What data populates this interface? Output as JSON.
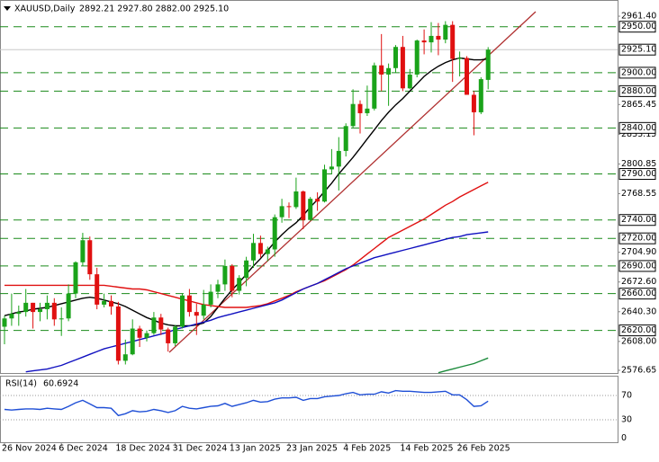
{
  "chart_data": {
    "type": "candlestick",
    "symbol": "XAUUSD,Daily",
    "header_ohlc_label": "2892.21 2927.80 2882.00 2925.10",
    "categories": [
      "26 Nov 2024",
      null,
      null,
      null,
      null,
      null,
      null,
      null,
      "6 Dec 2024",
      null,
      null,
      null,
      null,
      null,
      null,
      null,
      "18 Dec 2024",
      null,
      null,
      null,
      null,
      null,
      null,
      null,
      "31 Dec 2024",
      null,
      null,
      null,
      null,
      null,
      null,
      null,
      "13 Jan 2025",
      null,
      null,
      null,
      null,
      null,
      null,
      null,
      "23 Jan 2025",
      null,
      null,
      null,
      null,
      null,
      null,
      null,
      "4 Feb 2025",
      null,
      null,
      null,
      null,
      null,
      null,
      null,
      "14 Feb 2025",
      null,
      null,
      null,
      null,
      null,
      null,
      null,
      "26 Feb 2025",
      null,
      null,
      null,
      null
    ],
    "open": [
      2624,
      2633,
      2638,
      2640,
      2650,
      2640,
      2643,
      2650,
      2632,
      2633,
      2660,
      2694,
      2718,
      2681,
      2648,
      2652,
      2646,
      2587,
      2594,
      2622,
      2612,
      2617,
      2634,
      2621,
      2606,
      2624,
      2658,
      2640,
      2636,
      2648,
      2662,
      2670,
      2690,
      2663,
      2677,
      2696,
      2715,
      2703,
      2708,
      2743,
      2755,
      2754,
      2771,
      2740,
      2763,
      2760,
      2795,
      2798,
      2815,
      2842,
      2866,
      2856,
      2861,
      2908,
      2898,
      2905,
      2928,
      2883,
      2898,
      2935,
      2933,
      2940,
      2936,
      2952,
      2915,
      2916,
      2876,
      2857,
      2892.21
    ],
    "high": [
      2636,
      2660,
      2647,
      2665,
      2650,
      2650,
      2658,
      2655,
      2645,
      2670,
      2695,
      2726,
      2722,
      2688,
      2660,
      2658,
      2651,
      2610,
      2632,
      2625,
      2620,
      2640,
      2638,
      2623,
      2626,
      2660,
      2665,
      2649,
      2664,
      2670,
      2675,
      2697,
      2692,
      2680,
      2700,
      2725,
      2723,
      2711,
      2746,
      2763,
      2759,
      2786,
      2772,
      2765,
      2770,
      2800,
      2817,
      2830,
      2845,
      2882,
      2870,
      2886,
      2911,
      2942,
      2910,
      2930,
      2940,
      2904,
      2936,
      2947,
      2955,
      2954,
      2956,
      2956,
      2923,
      2918,
      2880,
      2895,
      2927.8
    ],
    "low": [
      2605,
      2625,
      2625,
      2635,
      2622,
      2630,
      2632,
      2625,
      2614,
      2630,
      2655,
      2690,
      2675,
      2643,
      2645,
      2637,
      2583,
      2583,
      2593,
      2602,
      2608,
      2615,
      2615,
      2597,
      2603,
      2622,
      2635,
      2615,
      2632,
      2645,
      2655,
      2663,
      2656,
      2659,
      2668,
      2688,
      2699,
      2695,
      2700,
      2737,
      2742,
      2752,
      2730,
      2739,
      2750,
      2759,
      2790,
      2772,
      2809,
      2840,
      2834,
      2853,
      2859,
      2880,
      2864,
      2900,
      2880,
      2882,
      2895,
      2920,
      2922,
      2919,
      2932,
      2890,
      2896,
      2876,
      2832,
      2855,
      2882
    ],
    "close": [
      2633,
      2638,
      2640,
      2650,
      2640,
      2643,
      2650,
      2632,
      2633,
      2660,
      2694,
      2718,
      2681,
      2648,
      2652,
      2646,
      2587,
      2594,
      2622,
      2612,
      2617,
      2634,
      2621,
      2606,
      2624,
      2658,
      2640,
      2636,
      2648,
      2662,
      2670,
      2690,
      2663,
      2677,
      2696,
      2715,
      2703,
      2708,
      2743,
      2755,
      2754,
      2771,
      2740,
      2763,
      2760,
      2795,
      2798,
      2815,
      2842,
      2866,
      2856,
      2861,
      2908,
      2898,
      2905,
      2928,
      2883,
      2898,
      2935,
      2933,
      2940,
      2936,
      2952,
      2915,
      2916,
      2876,
      2857,
      2893,
      2925.1
    ],
    "up_color": "#1aa31a",
    "down_color": "#e01010",
    "moving_averages": [
      {
        "color": "#000000",
        "values": [
          2636,
          2638,
          2640,
          2641,
          2643,
          2644,
          2645,
          2647,
          2649,
          2651,
          2653,
          2655,
          2656,
          2655,
          2653,
          2651,
          2649,
          2646,
          2642,
          2638,
          2634,
          2631,
          2628,
          2626,
          2625,
          2625,
          2625,
          2626,
          2628,
          2635,
          2645,
          2655,
          2664,
          2672,
          2681,
          2690,
          2698,
          2707,
          2716,
          2724,
          2731,
          2737,
          2745,
          2754,
          2762,
          2771,
          2780,
          2790,
          2799,
          2808,
          2818,
          2828,
          2838,
          2848,
          2857,
          2865,
          2872,
          2880,
          2888,
          2896,
          2902,
          2907,
          2911,
          2914,
          2916,
          2915,
          2914,
          2914,
          2915
        ]
      },
      {
        "color": "#e01010",
        "values": [
          2669,
          2669,
          2669,
          2669,
          2669,
          2669,
          2669,
          2669,
          2669,
          2669,
          2669,
          2669,
          2669,
          2669,
          2669,
          2668,
          2667,
          2666,
          2665,
          2665,
          2664,
          2662,
          2660,
          2658,
          2656,
          2654,
          2652,
          2650,
          2648,
          2647,
          2646,
          2645,
          2645,
          2645,
          2645,
          2646,
          2647,
          2649,
          2652,
          2655,
          2658,
          2662,
          2665,
          2668,
          2671,
          2674,
          2678,
          2682,
          2686,
          2691,
          2697,
          2703,
          2709,
          2715,
          2721,
          2725,
          2729,
          2733,
          2737,
          2741,
          2746,
          2751,
          2756,
          2760,
          2765,
          2769,
          2773,
          2777,
          2781
        ]
      },
      {
        "color": "#1010c0",
        "values": [
          null,
          null,
          null,
          2575,
          2576,
          2577,
          2578,
          2580,
          2582,
          2585,
          2588,
          2591,
          2594,
          2597,
          2600,
          2602,
          2604,
          2606,
          2608,
          2610,
          2612,
          2614,
          2616,
          2618,
          2621,
          2623,
          2625,
          2627,
          2629,
          2631,
          2634,
          2636,
          2638,
          2640,
          2642,
          2644,
          2646,
          2648,
          2650,
          2653,
          2657,
          2661,
          2665,
          2668,
          2671,
          2675,
          2679,
          2683,
          2687,
          2690,
          2693,
          2696,
          2699,
          2701,
          2703,
          2705,
          2707,
          2709,
          2711,
          2713,
          2715,
          2717,
          2719,
          2721,
          2722,
          2724,
          2725,
          2726,
          2727
        ]
      },
      {
        "color": "#1a8a3a",
        "values": [
          null,
          null,
          null,
          null,
          null,
          null,
          null,
          null,
          null,
          null,
          null,
          null,
          null,
          null,
          null,
          null,
          null,
          null,
          null,
          null,
          null,
          null,
          null,
          null,
          null,
          null,
          null,
          null,
          null,
          null,
          null,
          null,
          null,
          null,
          null,
          null,
          null,
          null,
          null,
          null,
          null,
          null,
          null,
          null,
          null,
          null,
          null,
          null,
          null,
          null,
          null,
          null,
          null,
          null,
          null,
          null,
          null,
          null,
          null,
          null,
          null,
          2574,
          2576,
          2578,
          2580,
          2582,
          2584,
          2587,
          2590
        ]
      }
    ],
    "ylim": [
      2573.7,
      2975.1
    ],
    "yticks": [
      {
        "value": 2961.4,
        "label": "2961.40"
      },
      {
        "value": 2865.45,
        "label": "2865.45"
      },
      {
        "value": 2833.15,
        "label": "2833.15"
      },
      {
        "value": 2800.85,
        "label": "2800.85"
      },
      {
        "value": 2768.55,
        "label": "2768.55"
      },
      {
        "value": 2704.9,
        "label": "2704.90"
      },
      {
        "value": 2672.6,
        "label": "2672.60"
      },
      {
        "value": 2640.3,
        "label": "2640.30"
      },
      {
        "value": 2608,
        "label": "2608.00"
      },
      {
        "value": 2576.65,
        "label": "2576.65"
      }
    ],
    "levels": [
      {
        "value": 2950,
        "label": "2950.00"
      },
      {
        "value": 2900,
        "label": "2900.00"
      },
      {
        "value": 2880,
        "label": "2880.00"
      },
      {
        "value": 2840,
        "label": "2840.00"
      },
      {
        "value": 2790,
        "label": "2790.00"
      },
      {
        "value": 2740,
        "label": "2740.00"
      },
      {
        "value": 2720,
        "label": "2720.00"
      },
      {
        "value": 2690,
        "label": "2690.00"
      },
      {
        "value": 2660,
        "label": "2660.00"
      },
      {
        "value": 2620,
        "label": "2620.00"
      }
    ],
    "level_color": "#1a8a1a",
    "current_price": {
      "value": 2925.1,
      "label": "2925.10"
    },
    "rsi": {
      "label": "RSI(14)",
      "color": "#1f4fd6",
      "values": [
        47,
        46,
        47,
        48,
        48,
        47,
        49,
        48,
        47,
        52,
        58,
        62,
        56,
        50,
        50,
        49,
        37,
        40,
        45,
        43,
        44,
        47,
        45,
        42,
        45,
        52,
        49,
        48,
        50,
        52,
        53,
        57,
        52,
        55,
        58,
        62,
        59,
        60,
        64,
        66,
        66,
        67,
        62,
        65,
        65,
        68,
        69,
        70,
        73,
        75,
        71,
        72,
        72,
        76,
        74,
        78,
        77,
        77,
        76,
        75,
        75,
        76,
        77,
        71,
        71,
        63,
        52,
        53,
        60.6924
      ],
      "ylim": [
        0,
        100
      ],
      "yticks": [
        70,
        30,
        0
      ]
    }
  }
}
